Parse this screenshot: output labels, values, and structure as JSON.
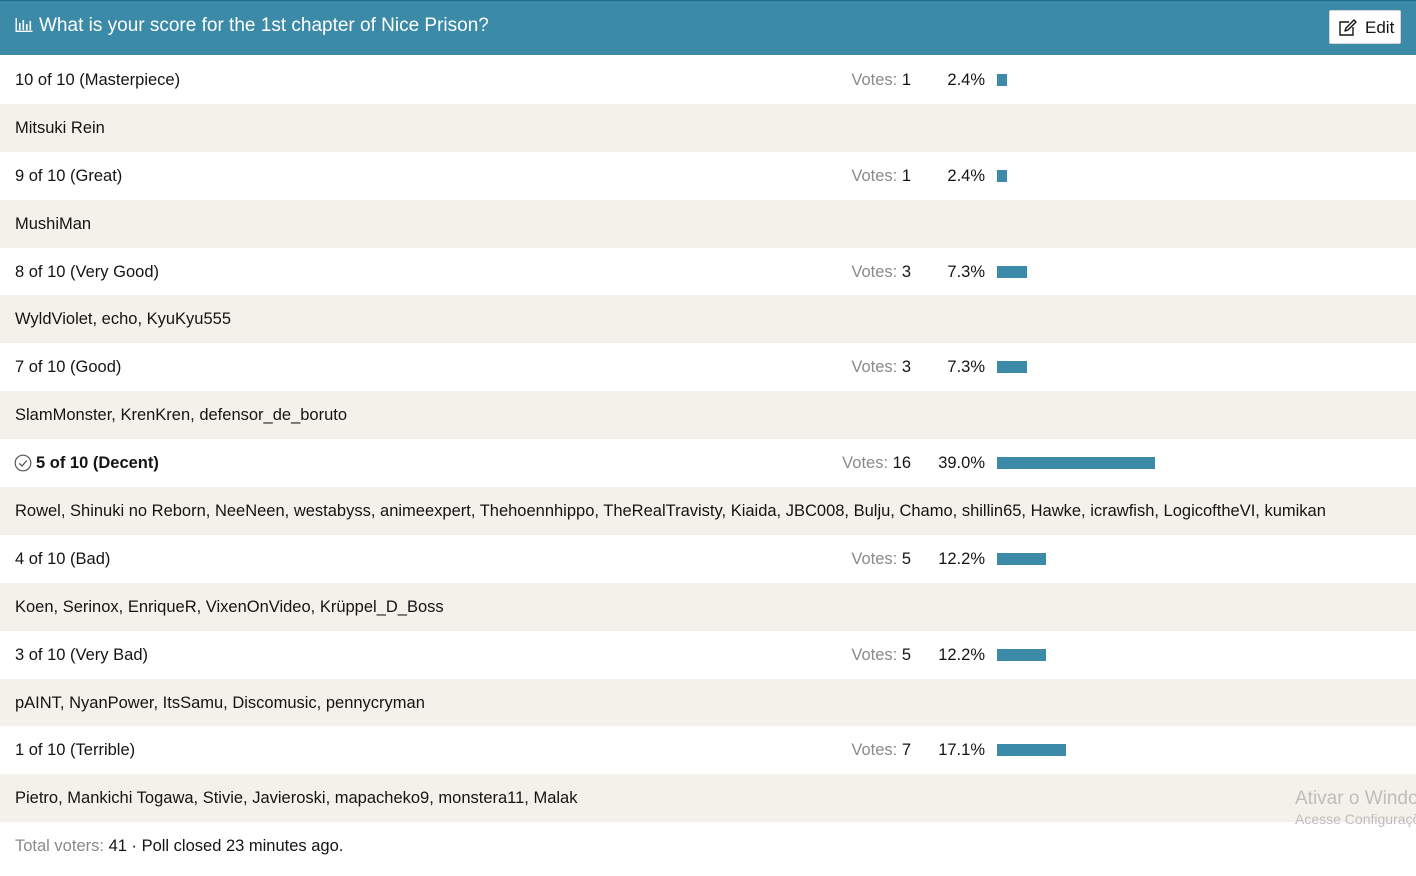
{
  "header": {
    "title": "What is your score for the 1st chapter of Nice Prison?",
    "edit_label": "Edit",
    "color": "#3b8aa8"
  },
  "votes_word": "Votes:",
  "options": [
    {
      "label": "10 of 10 (Masterpiece)",
      "votes": "1",
      "percent": "2.4%",
      "fraction": 0.024,
      "selected": false,
      "voters": "Mitsuki Rein"
    },
    {
      "label": "9 of 10 (Great)",
      "votes": "1",
      "percent": "2.4%",
      "fraction": 0.024,
      "selected": false,
      "voters": "MushiMan"
    },
    {
      "label": "8 of 10 (Very Good)",
      "votes": "3",
      "percent": "7.3%",
      "fraction": 0.073,
      "selected": false,
      "voters": "WyldViolet, echo, KyuKyu555"
    },
    {
      "label": "7 of 10 (Good)",
      "votes": "3",
      "percent": "7.3%",
      "fraction": 0.073,
      "selected": false,
      "voters": "SlamMonster, KrenKren, defensor_de_boruto"
    },
    {
      "label": "5 of 10 (Decent)",
      "votes": "16",
      "percent": "39.0%",
      "fraction": 0.39,
      "selected": true,
      "voters": "Rowel, Shinuki no Reborn, NeeNeen, westabyss, animeexpert, Thehoennhippo, TheRealTravisty, Kiaida, JBC008, Bulju, Chamo, shillin65, Hawke, icrawfish, LogicoftheVI, kumikan"
    },
    {
      "label": "4 of 10 (Bad)",
      "votes": "5",
      "percent": "12.2%",
      "fraction": 0.122,
      "selected": false,
      "voters": "Koen, Serinox, EnriqueR, VixenOnVideo, Krüppel_D_Boss"
    },
    {
      "label": "3 of 10 (Very Bad)",
      "votes": "5",
      "percent": "12.2%",
      "fraction": 0.122,
      "selected": false,
      "voters": "pAINT, NyanPower, ItsSamu, Discomusic, pennycryman"
    },
    {
      "label": "1 of 10 (Terrible)",
      "votes": "7",
      "percent": "17.1%",
      "fraction": 0.171,
      "selected": false,
      "voters": "Pietro, Mankichi Togawa, Stivie, Javieroski, mapacheko9, monstera11, Malak"
    }
  ],
  "footer": {
    "total_label": "Total voters:",
    "total": "41",
    "status": " · Poll closed 23 minutes ago."
  },
  "watermark": {
    "line1": "Ativar o Windows",
    "line2": "Acesse Configurações"
  }
}
